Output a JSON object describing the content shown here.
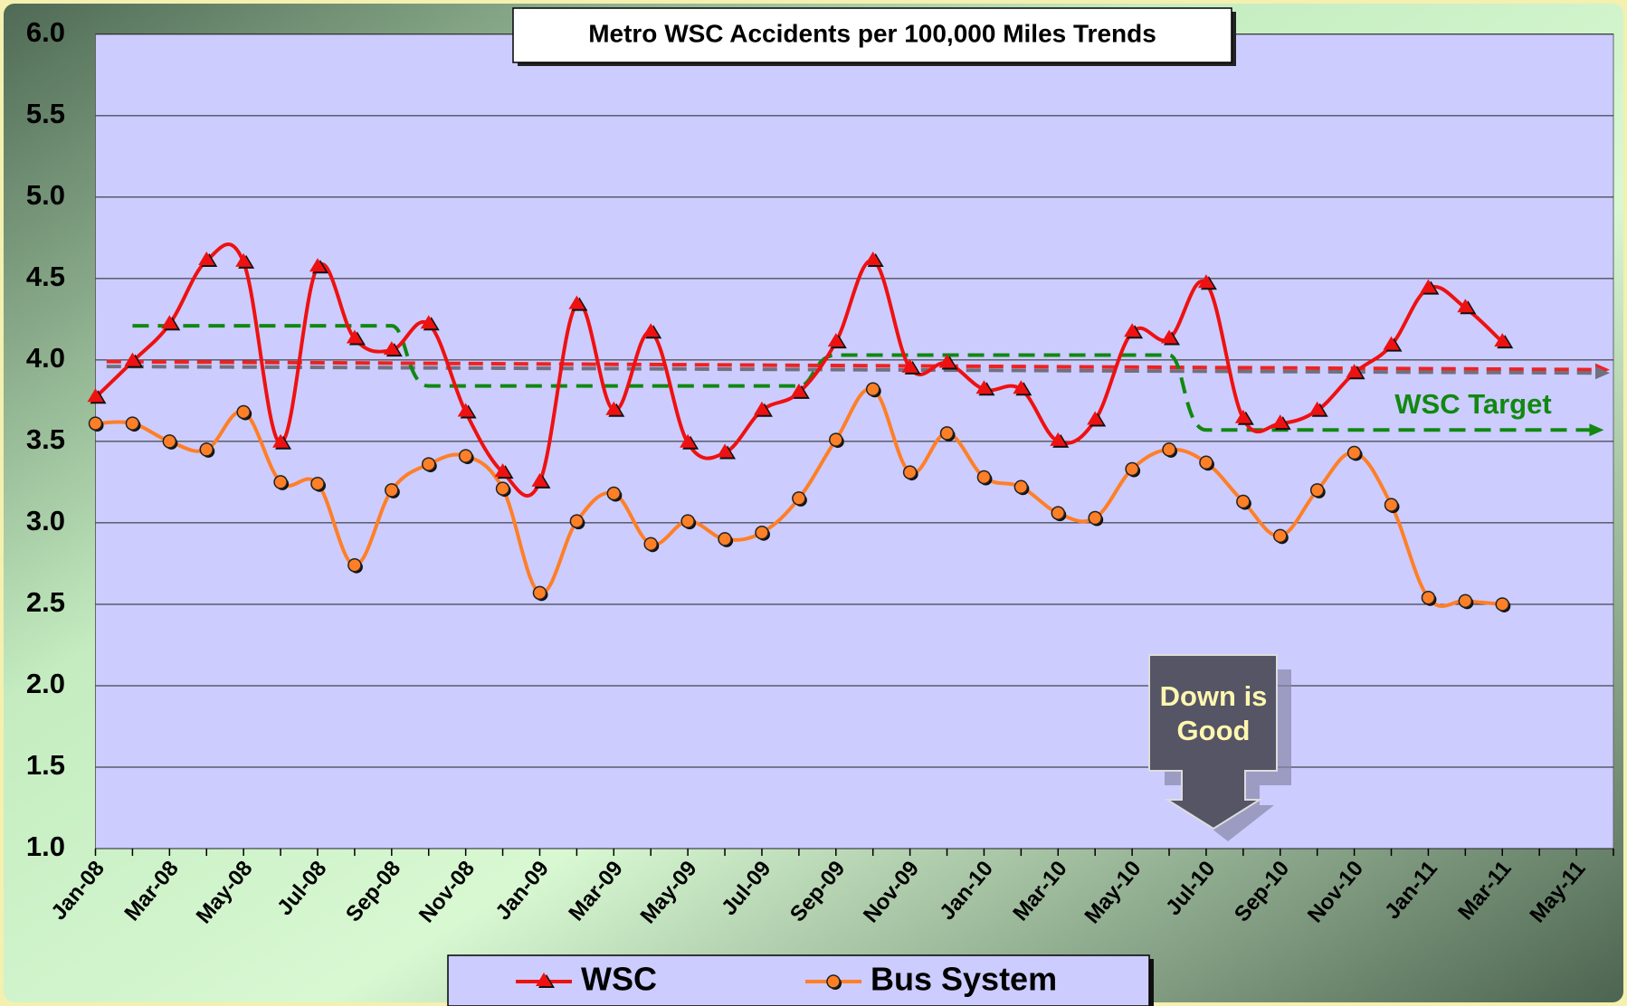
{
  "chart_data": {
    "type": "line",
    "title": "Metro WSC Accidents per 100,000 Miles Trends",
    "categories": [
      "Jan-08",
      null,
      "Mar-08",
      null,
      "May-08",
      null,
      "Jul-08",
      null,
      "Sep-08",
      null,
      "Nov-08",
      null,
      "Jan-09",
      null,
      "Mar-09",
      null,
      "May-09",
      null,
      "Jul-09",
      null,
      "Sep-09",
      null,
      "Nov-09",
      null,
      "Jan-10",
      null,
      "Mar-10",
      null,
      "May-10",
      null,
      "Jul-10",
      null,
      "Sep-10",
      null,
      "Nov-10",
      null,
      "Jan-11",
      null,
      "Mar-11",
      null,
      "May-11"
    ],
    "series": [
      {
        "name": "WSC",
        "color": "#ee1111",
        "marker": "triangle",
        "values": [
          3.77,
          3.99,
          4.22,
          4.61,
          4.6,
          3.49,
          4.57,
          4.13,
          4.06,
          4.22,
          3.68,
          3.31,
          3.25,
          4.34,
          3.69,
          4.17,
          3.49,
          3.43,
          3.69,
          3.8,
          4.11,
          4.61,
          3.95,
          3.98,
          3.82,
          3.82,
          3.5,
          3.63,
          4.17,
          4.13,
          4.47,
          3.64,
          3.61,
          3.69,
          3.92,
          4.09,
          4.44,
          4.32,
          4.11,
          null,
          null
        ]
      },
      {
        "name": "Bus System",
        "color": "#ff7f27",
        "marker": "circle",
        "values": [
          3.61,
          3.61,
          3.5,
          3.45,
          3.68,
          3.25,
          3.24,
          2.74,
          3.2,
          3.36,
          3.41,
          3.21,
          2.57,
          3.01,
          3.18,
          2.87,
          3.01,
          2.9,
          2.94,
          3.15,
          3.51,
          3.82,
          3.31,
          3.55,
          3.28,
          3.22,
          3.06,
          3.03,
          3.33,
          3.45,
          3.37,
          3.13,
          2.92,
          3.2,
          3.43,
          3.11,
          2.54,
          2.52,
          2.5,
          null,
          null
        ]
      }
    ],
    "target": {
      "label": "WSC Target",
      "color": "#118811",
      "values": [
        null,
        4.21,
        4.21,
        4.21,
        4.21,
        4.21,
        4.21,
        4.21,
        4.21,
        3.84,
        3.84,
        3.84,
        3.84,
        3.84,
        3.84,
        3.84,
        3.84,
        3.84,
        3.84,
        3.84,
        4.03,
        4.03,
        4.03,
        4.03,
        4.03,
        4.03,
        4.03,
        4.03,
        4.03,
        4.03,
        3.57,
        3.57,
        3.57,
        3.57,
        3.57,
        3.57,
        3.57,
        3.57,
        3.57,
        3.57,
        3.57
      ]
    },
    "trend_lines": [
      {
        "color": "#ee2222",
        "values": [
          3.99,
          3.94
        ]
      },
      {
        "color": "#707080",
        "values": [
          3.96,
          3.92
        ]
      }
    ],
    "ylim": [
      1,
      6
    ],
    "yticks": [
      {
        "value": 1,
        "label": "1.0"
      },
      1.5,
      {
        "value": 2,
        "label": "2.0"
      },
      2.5,
      {
        "value": 3,
        "label": "3.0"
      },
      3.5,
      {
        "value": 4,
        "label": "4.0"
      },
      4.5,
      {
        "value": 5,
        "label": "5.0"
      },
      5.5,
      {
        "value": 6,
        "label": "6.0"
      }
    ],
    "grid": true,
    "legend": "bottom",
    "callout": "Down is Good"
  }
}
